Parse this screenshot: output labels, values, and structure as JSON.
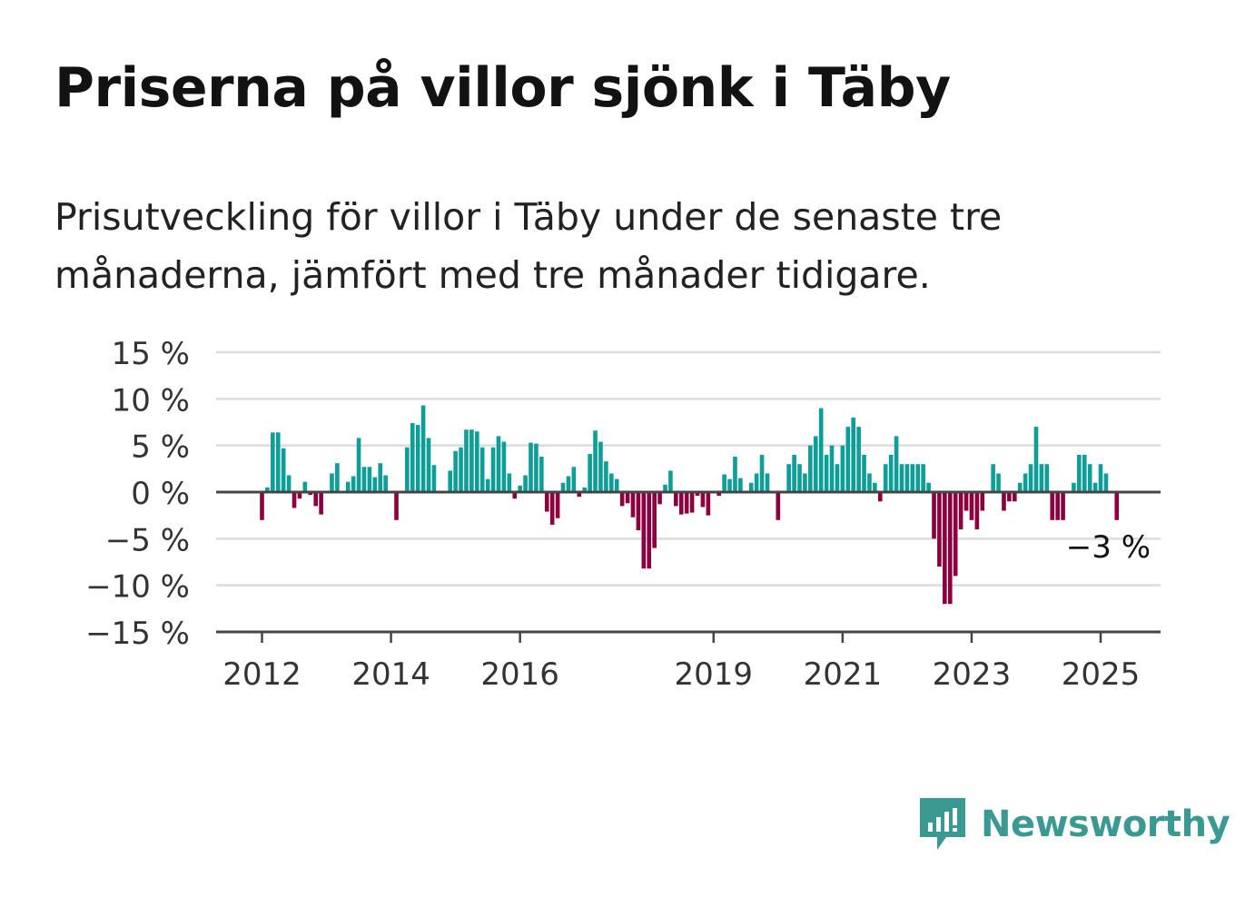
{
  "title": "Priserna på villor sjönk i Täby",
  "subtitle": "Prisutveckling för villor i Täby under de senaste tre månaderna, jämfört med tre månader tidigare.",
  "brand": {
    "name": "Newsworthy",
    "icon": "bar-chart-speech-bubble-icon",
    "color": "#3a9a92"
  },
  "colors": {
    "positive": "#0e9e98",
    "negative": "#8c0040",
    "grid": "#dcdcdc",
    "axis": "#444444",
    "text": "#333333"
  },
  "chart_data": {
    "type": "bar",
    "title": "",
    "xlabel": "",
    "ylabel": "",
    "ylim": [
      -15,
      15
    ],
    "grid": true,
    "yticks": [
      15,
      10,
      5,
      0,
      -5,
      -10,
      -15
    ],
    "ytick_labels": [
      "15 %",
      "10 %",
      "5 %",
      "0 %",
      "−5 %",
      "−10 %",
      "−15 %"
    ],
    "xticks": [
      {
        "year": 2012,
        "label": "2012"
      },
      {
        "year": 2014,
        "label": "2014"
      },
      {
        "year": 2016,
        "label": "2016"
      },
      {
        "year": 2019,
        "label": "2019"
      },
      {
        "year": 2021,
        "label": "2021"
      },
      {
        "year": 2023,
        "label": "2023"
      },
      {
        "year": 2025,
        "label": "2025"
      }
    ],
    "start": "2012-01",
    "frequency": "monthly",
    "values": [
      -3,
      0.5,
      6.4,
      6.4,
      4.7,
      1.8,
      -1.7,
      -0.7,
      1.1,
      -0.3,
      -1.5,
      -2.4,
      0,
      2,
      3.1,
      0,
      1.1,
      1.7,
      5.8,
      2.7,
      2.7,
      1.6,
      3.1,
      1.8,
      0,
      -3,
      0,
      4.8,
      7.4,
      7.2,
      9.3,
      5.8,
      2.9,
      0,
      0,
      2.3,
      4.4,
      4.8,
      6.7,
      6.7,
      6.5,
      4.8,
      1.4,
      4.8,
      6,
      5.4,
      2,
      -0.7,
      0.7,
      1.8,
      5.3,
      5.2,
      3.8,
      -2.1,
      -3.5,
      -2.8,
      1,
      1.7,
      2.7,
      -0.5,
      0.5,
      4.1,
      6.6,
      5.4,
      3.3,
      2,
      1.4,
      -1.5,
      -1.2,
      -2.7,
      -4.1,
      -8.2,
      -8.2,
      -6,
      -1.3,
      0.8,
      2.3,
      -1.5,
      -2.4,
      -2.3,
      -2.2,
      -0.4,
      -1.6,
      -2.5,
      0,
      -0.4,
      1.9,
      1.4,
      3.8,
      1.5,
      0,
      1,
      2,
      4,
      2,
      0,
      -3,
      0,
      3,
      4,
      3,
      2,
      5,
      6,
      9,
      4,
      5,
      3,
      5,
      7,
      8,
      7,
      4,
      2,
      1,
      -1,
      3,
      4,
      6,
      3,
      3,
      3,
      3,
      3,
      1,
      -5,
      -8,
      -12,
      -12,
      -9,
      -4,
      -2,
      -3,
      -4,
      -2,
      0,
      3,
      2,
      -2,
      -1,
      -1,
      1,
      2,
      3,
      7,
      3,
      3,
      -3,
      -3,
      -3,
      0,
      1,
      4,
      4,
      3,
      1,
      3,
      2,
      0,
      -3
    ],
    "annotation": {
      "label": "−3 %",
      "value": -3,
      "position": "last-bar"
    }
  }
}
